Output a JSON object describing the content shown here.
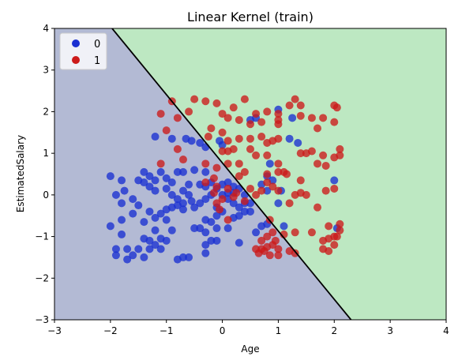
{
  "chart_data": {
    "type": "scatter",
    "title": "Linear Kernel (train)",
    "xlabel": "Age",
    "ylabel": "EstimatedSalary",
    "xlim": [
      -3,
      4
    ],
    "ylim": [
      -3,
      4
    ],
    "xticks": [
      "−3",
      "−2",
      "−1",
      "0",
      "1",
      "2",
      "3",
      "4"
    ],
    "yticks": [
      "−3",
      "−2",
      "−1",
      "0",
      "1",
      "2",
      "3",
      "4"
    ],
    "xtick_values": [
      -3,
      -2,
      -1,
      0,
      1,
      2,
      3,
      4
    ],
    "ytick_values": [
      -3,
      -2,
      -1,
      0,
      1,
      2,
      3,
      4
    ],
    "grid": false,
    "legend_position": "top-left",
    "decision_boundary": {
      "line": [
        [
          -1.97,
          4.0
        ],
        [
          2.3,
          -3.0
        ]
      ]
    },
    "regions": [
      {
        "class": "0",
        "color": "#b3bad4"
      },
      {
        "class": "1",
        "color": "#bde8c2"
      }
    ],
    "series": [
      {
        "name": "0",
        "color": "#1a2fd1",
        "points": [
          [
            -2.0,
            0.45
          ],
          [
            -1.8,
            0.35
          ],
          [
            -1.9,
            0.0
          ],
          [
            -1.75,
            0.1
          ],
          [
            -1.8,
            -0.2
          ],
          [
            -1.6,
            -0.1
          ],
          [
            -1.5,
            0.35
          ],
          [
            -1.4,
            0.55
          ],
          [
            -1.3,
            0.45
          ],
          [
            -1.2,
            0.35
          ],
          [
            -1.1,
            0.55
          ],
          [
            -1.0,
            0.4
          ],
          [
            -0.9,
            0.3
          ],
          [
            -0.8,
            0.55
          ],
          [
            -0.7,
            0.55
          ],
          [
            -1.4,
            0.3
          ],
          [
            -1.3,
            0.2
          ],
          [
            -1.2,
            0.1
          ],
          [
            -1.0,
            0.15
          ],
          [
            -0.9,
            0.0
          ],
          [
            -0.7,
            0.1
          ],
          [
            -0.6,
            0.25
          ],
          [
            -0.8,
            -0.1
          ],
          [
            -0.7,
            -0.2
          ],
          [
            -1.5,
            -0.25
          ],
          [
            -1.3,
            -0.4
          ],
          [
            -1.2,
            -0.55
          ],
          [
            -1.1,
            -0.45
          ],
          [
            -1.0,
            -0.35
          ],
          [
            -0.9,
            -0.3
          ],
          [
            -0.8,
            -0.25
          ],
          [
            -0.7,
            -0.35
          ],
          [
            -1.6,
            -0.45
          ],
          [
            -1.4,
            -0.65
          ],
          [
            -1.8,
            -0.6
          ],
          [
            -2.0,
            -0.75
          ],
          [
            -1.8,
            -0.95
          ],
          [
            -1.7,
            -1.3
          ],
          [
            -1.6,
            -1.45
          ],
          [
            -1.5,
            -1.3
          ],
          [
            -1.4,
            -1.05
          ],
          [
            -1.3,
            -1.1
          ],
          [
            -1.2,
            -1.2
          ],
          [
            -1.1,
            -1.05
          ],
          [
            -1.0,
            -1.1
          ],
          [
            -0.9,
            -0.85
          ],
          [
            -1.2,
            -0.85
          ],
          [
            -1.0,
            -0.6
          ],
          [
            -1.3,
            -1.3
          ],
          [
            -1.1,
            -1.3
          ],
          [
            -0.8,
            -1.55
          ],
          [
            -0.7,
            -1.5
          ],
          [
            -0.6,
            -1.5
          ],
          [
            -1.9,
            -1.3
          ],
          [
            -1.9,
            -1.45
          ],
          [
            -1.4,
            -1.5
          ],
          [
            -1.7,
            -1.55
          ],
          [
            -0.5,
            -0.8
          ],
          [
            -0.4,
            -0.8
          ],
          [
            -0.3,
            -0.9
          ],
          [
            -0.2,
            -1.1
          ],
          [
            -0.3,
            -1.2
          ],
          [
            -0.1,
            -1.1
          ],
          [
            -0.3,
            -1.4
          ],
          [
            -0.1,
            -0.8
          ],
          [
            0.1,
            -0.8
          ],
          [
            0.3,
            -1.15
          ],
          [
            -0.5,
            -0.3
          ],
          [
            -0.4,
            -0.2
          ],
          [
            -0.3,
            -0.1
          ],
          [
            -0.2,
            0.0
          ],
          [
            -0.3,
            0.2
          ],
          [
            -0.4,
            0.25
          ],
          [
            -0.2,
            0.3
          ],
          [
            -0.1,
            0.15
          ],
          [
            0.0,
            0.25
          ],
          [
            0.1,
            0.3
          ],
          [
            0.2,
            0.2
          ],
          [
            0.3,
            0.15
          ],
          [
            0.0,
            0.0
          ],
          [
            0.1,
            -0.1
          ],
          [
            0.2,
            -0.2
          ],
          [
            0.3,
            -0.3
          ],
          [
            0.4,
            -0.2
          ],
          [
            0.4,
            -0.4
          ],
          [
            0.3,
            -0.5
          ],
          [
            0.2,
            -0.55
          ],
          [
            0.0,
            -0.4
          ],
          [
            -0.1,
            -0.3
          ],
          [
            -0.3,
            -0.6
          ],
          [
            -0.2,
            -0.65
          ],
          [
            -0.1,
            -0.5
          ],
          [
            0.1,
            0.05
          ],
          [
            0.2,
            0.05
          ],
          [
            0.4,
            0.0
          ],
          [
            0.5,
            -0.2
          ],
          [
            0.5,
            -0.4
          ],
          [
            0.6,
            -0.9
          ],
          [
            0.7,
            -0.75
          ],
          [
            0.8,
            -0.7
          ],
          [
            0.7,
            0.25
          ],
          [
            0.8,
            0.1
          ],
          [
            0.8,
            0.45
          ],
          [
            0.85,
            0.75
          ],
          [
            1.0,
            -0.2
          ],
          [
            1.05,
            0.1
          ],
          [
            0.9,
            0.35
          ],
          [
            1.1,
            -0.75
          ],
          [
            0.5,
            1.8
          ],
          [
            0.6,
            1.85
          ],
          [
            1.0,
            2.05
          ],
          [
            1.25,
            1.85
          ],
          [
            1.35,
            1.25
          ],
          [
            1.2,
            1.35
          ],
          [
            2.0,
            0.35
          ],
          [
            2.05,
            -0.8
          ],
          [
            -0.65,
            1.35
          ],
          [
            -0.9,
            1.35
          ],
          [
            -1.2,
            1.4
          ],
          [
            -0.55,
            1.3
          ],
          [
            -0.4,
            1.25
          ],
          [
            -0.3,
            1.15
          ],
          [
            -0.05,
            1.3
          ],
          [
            0.0,
            1.2
          ],
          [
            -0.3,
            0.55
          ],
          [
            -0.5,
            0.6
          ],
          [
            -0.6,
            0.0
          ],
          [
            -0.55,
            -0.15
          ]
        ]
      },
      {
        "name": "1",
        "color": "#cc1a1a",
        "points": [
          [
            -0.9,
            2.25
          ],
          [
            -1.1,
            1.95
          ],
          [
            -0.6,
            2.0
          ],
          [
            -0.8,
            1.85
          ],
          [
            -0.5,
            2.3
          ],
          [
            -0.3,
            2.25
          ],
          [
            -0.1,
            2.2
          ],
          [
            0.0,
            1.95
          ],
          [
            0.2,
            2.1
          ],
          [
            0.4,
            2.3
          ],
          [
            0.6,
            1.95
          ],
          [
            0.8,
            2.0
          ],
          [
            1.0,
            1.95
          ],
          [
            1.0,
            1.8
          ],
          [
            1.0,
            1.7
          ],
          [
            1.2,
            2.15
          ],
          [
            1.3,
            2.3
          ],
          [
            1.4,
            2.15
          ],
          [
            1.4,
            1.9
          ],
          [
            1.6,
            1.85
          ],
          [
            1.7,
            1.6
          ],
          [
            1.8,
            1.85
          ],
          [
            2.0,
            2.15
          ],
          [
            2.05,
            2.1
          ],
          [
            2.0,
            1.75
          ],
          [
            0.1,
            1.85
          ],
          [
            0.3,
            1.8
          ],
          [
            0.5,
            1.7
          ],
          [
            0.7,
            1.75
          ],
          [
            -0.2,
            1.6
          ],
          [
            0.0,
            1.5
          ],
          [
            -0.25,
            1.4
          ],
          [
            0.1,
            1.3
          ],
          [
            0.3,
            1.35
          ],
          [
            0.5,
            1.35
          ],
          [
            0.7,
            1.4
          ],
          [
            0.9,
            1.3
          ],
          [
            1.0,
            1.35
          ],
          [
            0.8,
            1.25
          ],
          [
            1.4,
            1.0
          ],
          [
            1.5,
            1.0
          ],
          [
            1.6,
            1.05
          ],
          [
            1.8,
            0.95
          ],
          [
            2.0,
            0.9
          ],
          [
            2.1,
            1.1
          ],
          [
            2.1,
            0.95
          ],
          [
            1.7,
            0.75
          ],
          [
            1.85,
            0.7
          ],
          [
            0.0,
            1.05
          ],
          [
            0.1,
            1.05
          ],
          [
            0.2,
            1.1
          ],
          [
            0.5,
            1.1
          ],
          [
            0.6,
            0.95
          ],
          [
            0.8,
            0.95
          ],
          [
            1.0,
            0.75
          ],
          [
            0.8,
            0.5
          ],
          [
            1.0,
            0.55
          ],
          [
            1.1,
            0.55
          ],
          [
            1.15,
            0.5
          ],
          [
            0.3,
            0.45
          ],
          [
            0.4,
            0.55
          ],
          [
            0.3,
            0.75
          ],
          [
            0.1,
            0.75
          ],
          [
            -0.1,
            0.65
          ],
          [
            -0.3,
            0.75
          ],
          [
            -1.1,
            0.75
          ],
          [
            -1.0,
            1.55
          ],
          [
            -0.8,
            1.1
          ],
          [
            -0.7,
            0.85
          ],
          [
            1.4,
            0.35
          ],
          [
            1.4,
            0.05
          ],
          [
            1.5,
            0.0
          ],
          [
            1.85,
            0.1
          ],
          [
            2.0,
            0.15
          ],
          [
            1.0,
            0.1
          ],
          [
            1.7,
            -0.3
          ],
          [
            1.9,
            -0.75
          ],
          [
            2.1,
            -0.7
          ],
          [
            2.1,
            -0.85
          ],
          [
            2.0,
            -1.0
          ],
          [
            2.05,
            -1.0
          ],
          [
            1.9,
            -1.05
          ],
          [
            1.8,
            -1.1
          ],
          [
            2.0,
            -1.2
          ],
          [
            1.8,
            -1.3
          ],
          [
            1.9,
            -1.35
          ],
          [
            1.6,
            -0.9
          ],
          [
            1.3,
            -0.9
          ],
          [
            1.1,
            -0.95
          ],
          [
            0.9,
            -0.9
          ],
          [
            0.8,
            -1.0
          ],
          [
            0.7,
            -1.1
          ],
          [
            0.7,
            -1.3
          ],
          [
            0.8,
            -1.25
          ],
          [
            0.65,
            -1.4
          ],
          [
            0.85,
            -1.45
          ],
          [
            0.6,
            -1.3
          ],
          [
            0.9,
            -1.2
          ],
          [
            0.95,
            -1.1
          ],
          [
            1.0,
            -1.3
          ],
          [
            1.0,
            -1.45
          ],
          [
            1.2,
            -1.35
          ],
          [
            1.3,
            -1.4
          ],
          [
            0.75,
            -1.35
          ],
          [
            0.85,
            -0.6
          ],
          [
            0.2,
            -0.05
          ],
          [
            0.1,
            0.15
          ],
          [
            -0.15,
            0.05
          ],
          [
            -0.3,
            0.3
          ],
          [
            -0.1,
            0.2
          ],
          [
            0.0,
            -0.1
          ],
          [
            0.25,
            0.05
          ],
          [
            0.5,
            0.15
          ],
          [
            0.6,
            0.0
          ],
          [
            0.4,
            -0.15
          ],
          [
            0.7,
            0.1
          ],
          [
            0.8,
            0.3
          ],
          [
            0.9,
            0.2
          ],
          [
            1.2,
            -0.2
          ],
          [
            -0.1,
            -0.2
          ],
          [
            -0.05,
            -0.35
          ],
          [
            0.1,
            -0.6
          ],
          [
            -0.15,
            0.4
          ],
          [
            1.3,
            0.0
          ]
        ]
      }
    ]
  }
}
